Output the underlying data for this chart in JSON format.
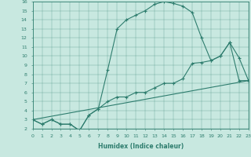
{
  "xlabel": "Humidex (Indice chaleur)",
  "xlim": [
    0,
    23
  ],
  "ylim": [
    2,
    16
  ],
  "xticks": [
    0,
    1,
    2,
    3,
    4,
    5,
    6,
    7,
    8,
    9,
    10,
    11,
    12,
    13,
    14,
    15,
    16,
    17,
    18,
    19,
    20,
    21,
    22,
    23
  ],
  "yticks": [
    2,
    3,
    4,
    5,
    6,
    7,
    8,
    9,
    10,
    11,
    12,
    13,
    14,
    15,
    16
  ],
  "color": "#2e7d6e",
  "bg_color": "#c8e8e0",
  "line1_x": [
    0,
    1,
    2,
    3,
    4,
    5,
    6,
    7,
    8,
    9,
    10,
    11,
    12,
    13,
    14,
    15,
    16,
    17,
    18,
    19,
    20,
    21,
    22,
    23
  ],
  "line1_y": [
    3,
    2.5,
    3,
    2.5,
    2.5,
    1.8,
    3.5,
    4.2,
    8.5,
    13,
    14,
    14.5,
    15,
    15.7,
    16,
    15.8,
    15.5,
    14.8,
    12,
    9.5,
    10,
    11.5,
    9.8,
    7.3
  ],
  "line2_x": [
    0,
    1,
    2,
    3,
    4,
    5,
    6,
    7,
    8,
    9,
    10,
    11,
    12,
    13,
    14,
    15,
    16,
    17,
    18,
    19,
    20,
    21,
    22,
    23
  ],
  "line2_y": [
    3,
    2.5,
    3,
    2.5,
    2.5,
    1.8,
    3.5,
    4.2,
    5.0,
    5.5,
    5.5,
    6.0,
    6.0,
    6.5,
    7.0,
    7.0,
    7.5,
    9.2,
    9.3,
    9.5,
    10.0,
    11.5,
    7.3,
    7.3
  ],
  "line3_x": [
    0,
    23
  ],
  "line3_y": [
    3,
    7.3
  ]
}
